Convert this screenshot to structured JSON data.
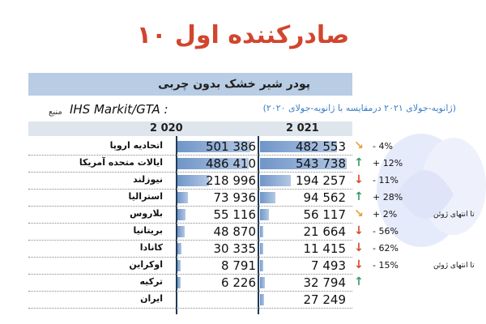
{
  "title": "۱۰ صادرکننده اول",
  "product": "پودر شیر خشک بدون چربی",
  "comparison": "(ژانویه-جولای ۲۰۲۱ درمقایسه با ژانویه-جولای ۲۰۲۰)",
  "source_label": "منبع",
  "source_value": "IHS Markit/GTA :",
  "columns": {
    "y2020": "2 020",
    "y2021": "2 021"
  },
  "colors": {
    "title": "#d2452e",
    "banner": "#b8cce4",
    "up": "#3a9a6a",
    "down": "#d64a2a",
    "neutral": "#e0a23a"
  },
  "rows": [
    {
      "country": "اتحادیه اروپا",
      "v2020": "501 386",
      "v2021": "482 553",
      "f2020": 501386,
      "f2021": 482553,
      "arrow": "neutral",
      "pct": "- 4%"
    },
    {
      "country": "ایالات متحده آمریکا",
      "v2020": "486 410",
      "v2021": "543 738",
      "f2020": 486410,
      "f2021": 543738,
      "arrow": "up",
      "pct": "+ 12%"
    },
    {
      "country": "نیوزلند",
      "v2020": "218 996",
      "v2021": "194 257",
      "f2020": 218996,
      "f2021": 194257,
      "arrow": "down",
      "pct": "- 11%"
    },
    {
      "country": "استرالیا",
      "v2020": "73 936",
      "v2021": "94 562",
      "f2020": 73936,
      "f2021": 94562,
      "arrow": "up",
      "pct": "+ 28%"
    },
    {
      "country": "بلاروس",
      "v2020": "55 116",
      "v2021": "56 117",
      "f2020": 55116,
      "f2021": 56117,
      "arrow": "neutral",
      "pct": "+ 2%"
    },
    {
      "country": "بریتانیا",
      "v2020": "48 870",
      "v2021": "21 664",
      "f2020": 48870,
      "f2021": 21664,
      "arrow": "down",
      "pct": "- 56%"
    },
    {
      "country": "کانادا",
      "v2020": "30 335",
      "v2021": "11 415",
      "f2020": 30335,
      "f2021": 11415,
      "arrow": "down",
      "pct": "- 62%"
    },
    {
      "country": "اوکراین",
      "v2020": "8 791",
      "v2021": "7 493",
      "f2020": 8791,
      "f2021": 7493,
      "arrow": "down",
      "pct": "- 15%"
    },
    {
      "country": "ترکیه",
      "v2020": "6 226",
      "v2021": "32 794",
      "f2020": 6226,
      "f2021": 32794,
      "arrow": "up",
      "pct": ""
    },
    {
      "country": "ایران",
      "v2020": "",
      "v2021": "27 249",
      "f2020": 0,
      "f2021": 27249,
      "arrow": "none",
      "pct": ""
    }
  ],
  "notes": [
    {
      "text": "تا انتهای ژوئن",
      "row": 4
    },
    {
      "text": "تا انتهای ژوئن",
      "row": 7
    }
  ]
}
